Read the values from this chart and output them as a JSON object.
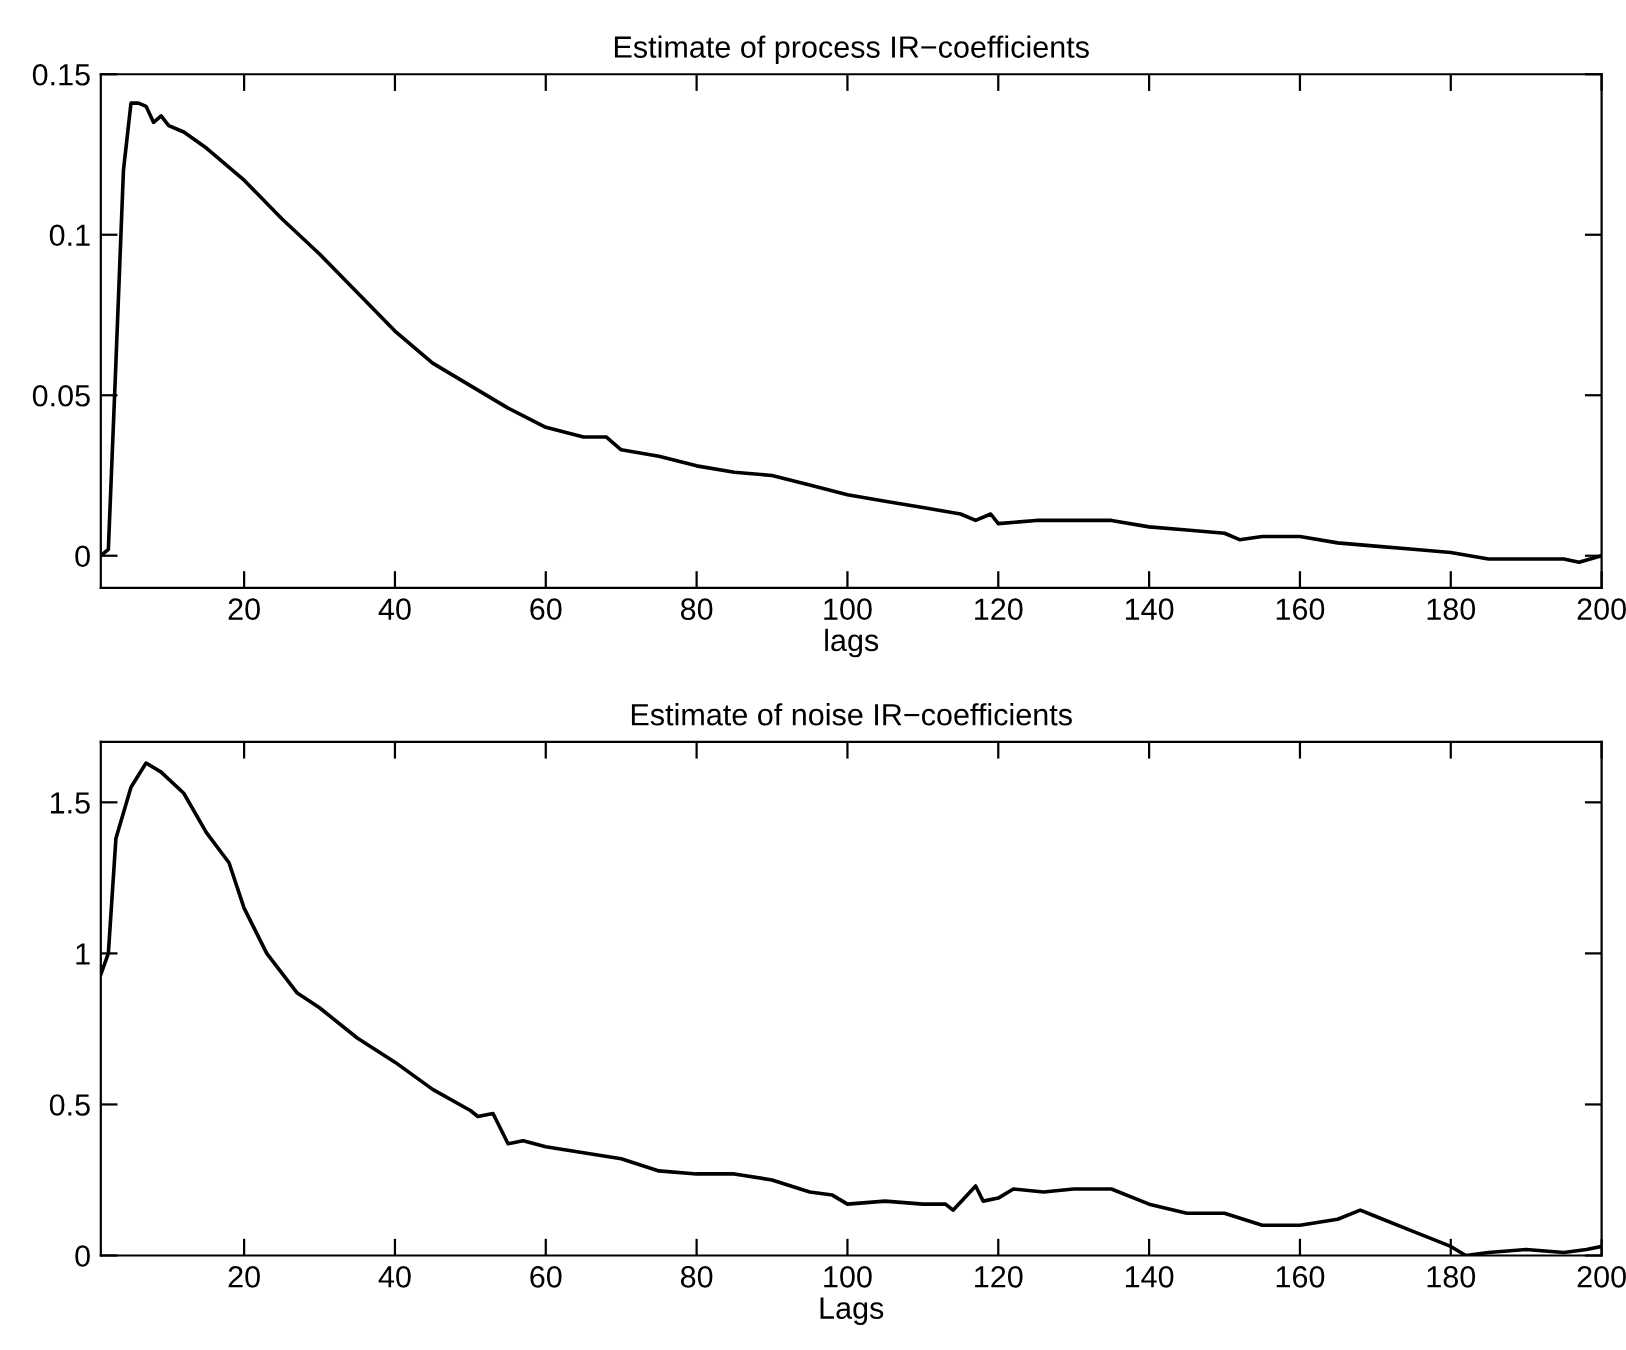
{
  "chart_data": [
    {
      "type": "line",
      "title": "Estimate of process IR−coefficients",
      "xlabel": "lags",
      "xlim": [
        1,
        200
      ],
      "xticks": [
        20,
        40,
        60,
        80,
        100,
        120,
        140,
        160,
        180,
        200
      ],
      "ylim": [
        -0.01,
        0.15
      ],
      "yticks": [
        0,
        0.05,
        0.1,
        0.15
      ],
      "grid": false,
      "legend": false,
      "series": [
        {
          "color": "#000000",
          "x": [
            1,
            2,
            3,
            4,
            5,
            6,
            7,
            8,
            9,
            10,
            12,
            15,
            20,
            25,
            30,
            35,
            40,
            45,
            50,
            55,
            60,
            65,
            68,
            70,
            75,
            80,
            85,
            90,
            95,
            100,
            105,
            110,
            115,
            117,
            119,
            120,
            125,
            130,
            135,
            140,
            145,
            150,
            152,
            155,
            160,
            165,
            170,
            175,
            180,
            185,
            190,
            195,
            197,
            200
          ],
          "values": [
            0,
            0.002,
            0.06,
            0.12,
            0.141,
            0.141,
            0.14,
            0.135,
            0.137,
            0.134,
            0.132,
            0.127,
            0.117,
            0.105,
            0.094,
            0.082,
            0.07,
            0.06,
            0.053,
            0.046,
            0.04,
            0.037,
            0.037,
            0.033,
            0.031,
            0.028,
            0.026,
            0.025,
            0.022,
            0.019,
            0.017,
            0.015,
            0.013,
            0.011,
            0.013,
            0.01,
            0.011,
            0.011,
            0.011,
            0.009,
            0.008,
            0.007,
            0.005,
            0.006,
            0.006,
            0.004,
            0.003,
            0.002,
            0.001,
            -0.001,
            -0.001,
            -0.001,
            -0.002,
            0
          ]
        }
      ]
    },
    {
      "type": "line",
      "title": "Estimate of noise IR−coefficients",
      "xlabel": "Lags",
      "xlim": [
        1,
        200
      ],
      "xticks": [
        20,
        40,
        60,
        80,
        100,
        120,
        140,
        160,
        180,
        200
      ],
      "ylim": [
        0,
        1.7
      ],
      "yticks": [
        0,
        0.5,
        1,
        1.5
      ],
      "grid": false,
      "legend": false,
      "series": [
        {
          "color": "#000000",
          "x": [
            1,
            2,
            3,
            5,
            7,
            9,
            12,
            15,
            18,
            20,
            23,
            27,
            30,
            35,
            40,
            45,
            50,
            51,
            53,
            55,
            57,
            60,
            65,
            70,
            75,
            80,
            85,
            90,
            95,
            98,
            100,
            105,
            110,
            113,
            114,
            117,
            118,
            120,
            122,
            126,
            130,
            135,
            140,
            145,
            150,
            155,
            160,
            165,
            168,
            170,
            175,
            180,
            182,
            185,
            190,
            195,
            198,
            200
          ],
          "values": [
            0.93,
            1.0,
            1.38,
            1.55,
            1.63,
            1.6,
            1.53,
            1.4,
            1.3,
            1.15,
            1.0,
            0.87,
            0.82,
            0.72,
            0.64,
            0.55,
            0.48,
            0.46,
            0.47,
            0.37,
            0.38,
            0.36,
            0.34,
            0.32,
            0.28,
            0.27,
            0.27,
            0.25,
            0.21,
            0.2,
            0.17,
            0.18,
            0.17,
            0.17,
            0.15,
            0.23,
            0.18,
            0.19,
            0.22,
            0.21,
            0.22,
            0.22,
            0.17,
            0.14,
            0.14,
            0.1,
            0.1,
            0.12,
            0.15,
            0.13,
            0.08,
            0.03,
            0.0,
            0.01,
            0.02,
            0.01,
            0.02,
            0.03
          ]
        }
      ]
    }
  ]
}
